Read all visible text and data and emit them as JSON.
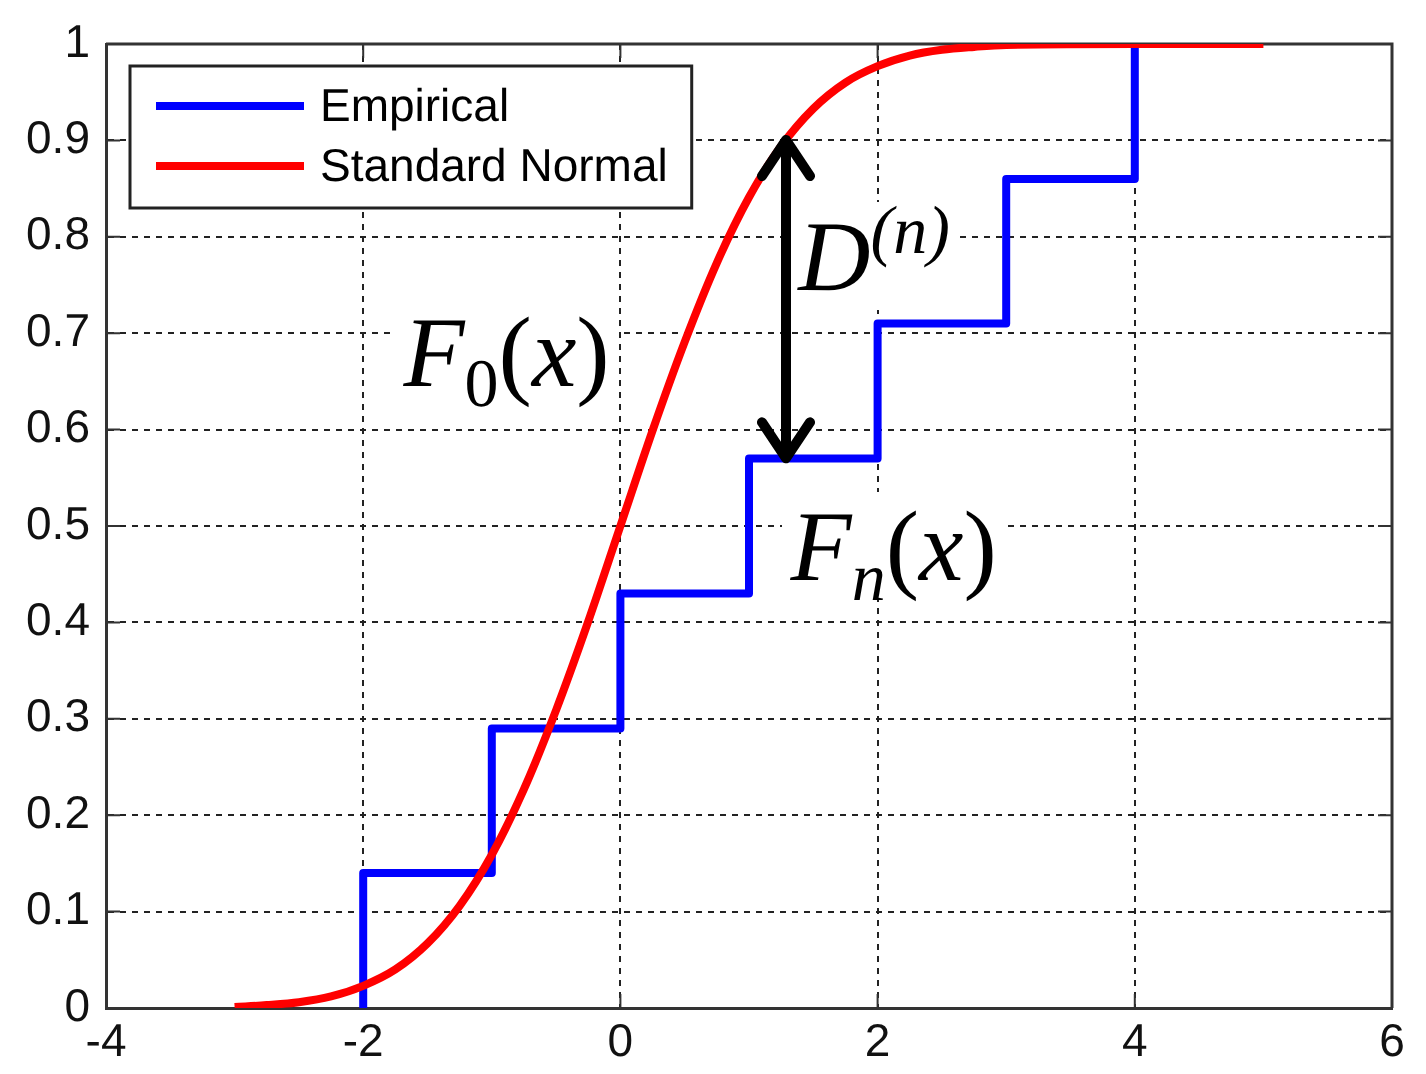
{
  "chart_data": {
    "type": "line",
    "xlim": [
      -4,
      6
    ],
    "xticks": [
      -4,
      -2,
      0,
      2,
      4,
      6
    ],
    "ylim": [
      0,
      1
    ],
    "yticks": [
      0,
      0.1,
      0.2,
      0.3,
      0.4,
      0.5,
      0.6,
      0.7,
      0.8,
      0.9,
      1
    ],
    "grid": true,
    "legend": "top left",
    "series": [
      {
        "name": "Empirical",
        "type": "step",
        "color": "#0000ff",
        "x": [
          -2,
          -2,
          -1,
          0,
          1,
          2,
          3,
          4
        ],
        "values": [
          0,
          0.14,
          0.29,
          0.43,
          0.57,
          0.71,
          0.86,
          1
        ]
      },
      {
        "name": "Standard Normal",
        "type": "line",
        "color": "#ff0000",
        "x": [
          -3,
          -2.75,
          -2.5,
          -2.25,
          -2,
          -1.75,
          -1.5,
          -1.25,
          -1,
          -0.75,
          -0.5,
          -0.25,
          0,
          0.25,
          0.5,
          0.75,
          1,
          1.25,
          1.5,
          1.75,
          2,
          2.25,
          2.5,
          2.75,
          3,
          4,
          5
        ],
        "values": [
          0.001,
          0.003,
          0.006,
          0.012,
          0.023,
          0.04,
          0.067,
          0.106,
          0.159,
          0.227,
          0.309,
          0.401,
          0.5,
          0.599,
          0.691,
          0.773,
          0.841,
          0.894,
          0.933,
          0.96,
          0.977,
          0.988,
          0.994,
          0.997,
          0.999,
          1,
          1
        ]
      }
    ],
    "annotations": [
      "F$_{0}$(x)",
      {
        "text": "D$^{(n)}$",
        "x": 1.29,
        "y": 0.57
      },
      "F$_{n}$(x)"
    ]
  }
}
